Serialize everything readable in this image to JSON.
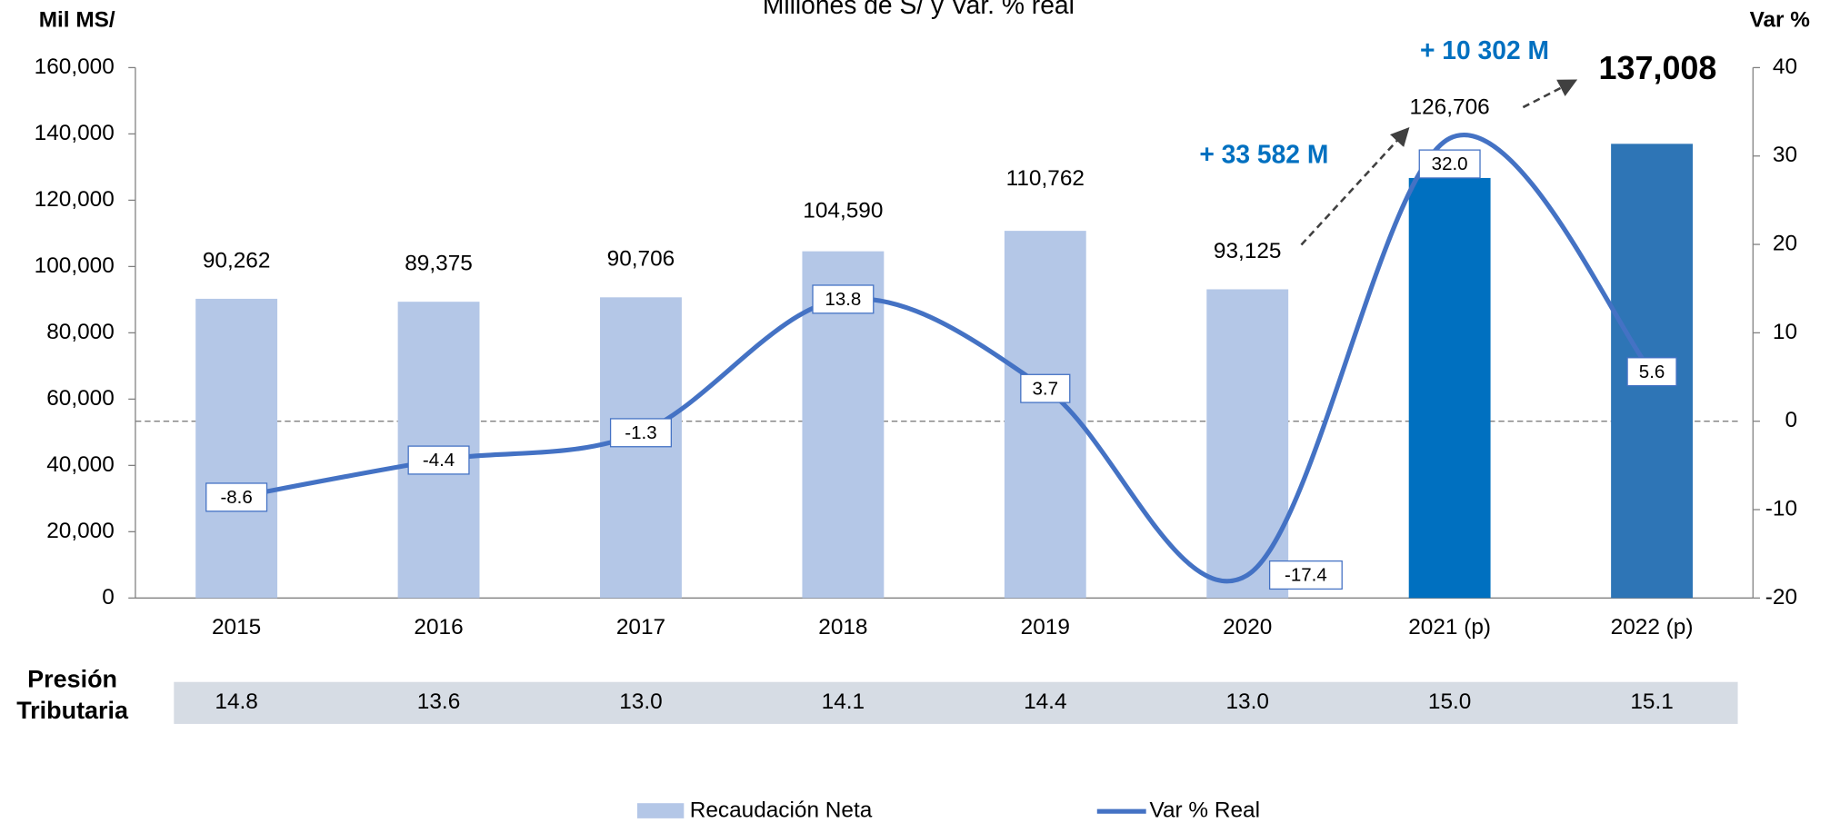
{
  "chart_data": {
    "type": "bar",
    "title": "Millones de S/ y Var. % real",
    "y_label": "Mil MS/",
    "y2_label": "Var %",
    "categories": [
      "2015",
      "2016",
      "2017",
      "2018",
      "2019",
      "2020",
      "2021 (p)",
      "2022 (p)"
    ],
    "series": [
      {
        "name": "Recaudación Neta",
        "type": "bar",
        "color": "#b4c7e7",
        "colors": [
          "#b4c7e7",
          "#b4c7e7",
          "#b4c7e7",
          "#b4c7e7",
          "#b4c7e7",
          "#b4c7e7",
          "#0070c0",
          "#2e75b6"
        ],
        "values": [
          90262,
          89375,
          90706,
          104590,
          110762,
          93125,
          126706,
          137008
        ],
        "value_labels": [
          "90,262",
          "89,375",
          "90,706",
          "104,590",
          "110,762",
          "93,125",
          "126,706",
          "137,008"
        ]
      },
      {
        "name": "Var % Real",
        "type": "line",
        "axis": "y2",
        "color": "#4472c4",
        "values": [
          -8.6,
          -4.4,
          -1.3,
          13.8,
          3.7,
          -17.4,
          32,
          5.6
        ],
        "value_labels": [
          "-8.6",
          "-4.4",
          "-1.3",
          "13.8",
          "3.7",
          "-17.4",
          "32.0",
          "5.6"
        ]
      }
    ],
    "ylim": [
      0,
      160000
    ],
    "yticks": [
      0,
      {
        "value": 20000,
        "label": "20,000"
      },
      {
        "value": 40000,
        "label": "40,000"
      },
      {
        "value": 60000,
        "label": "60,000"
      },
      {
        "value": 80000,
        "label": "80,000"
      },
      {
        "value": 100000,
        "label": "100,000"
      },
      {
        "value": 120000,
        "label": "120,000"
      },
      {
        "value": 140000,
        "label": "140,000"
      },
      {
        "value": 160000,
        "label": "160,000"
      }
    ],
    "y2lim": [
      -20,
      40
    ],
    "y2ticks": [
      -20,
      -10,
      0,
      10,
      20,
      30,
      40
    ],
    "annotations": [
      "+ 33 582 M",
      "+ 10 302 M"
    ],
    "pressure": {
      "label": [
        "Presión",
        "Tributaria"
      ],
      "values": [
        14.8,
        13.6,
        13.0,
        14.1,
        14.4,
        13.0,
        15.0,
        15.1
      ],
      "value_labels": [
        "14.8",
        "13.6",
        "13.0",
        "14.1",
        "14.4",
        "13.0",
        "15.0",
        "15.1"
      ]
    }
  }
}
